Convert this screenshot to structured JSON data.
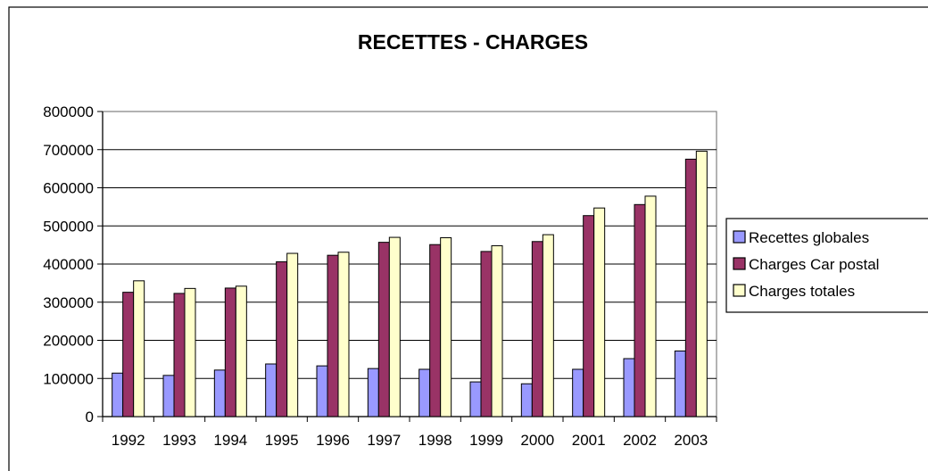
{
  "chart_data": {
    "type": "bar",
    "title": "RECETTES - CHARGES",
    "xlabel": "",
    "ylabel": "",
    "categories": [
      "1992",
      "1993",
      "1994",
      "1995",
      "1996",
      "1997",
      "1998",
      "1999",
      "2000",
      "2001",
      "2002",
      "2003"
    ],
    "series": [
      {
        "name": "Recettes globales",
        "color": "#9999ff",
        "values": [
          114000,
          108000,
          122000,
          138000,
          133000,
          126000,
          124000,
          91000,
          86000,
          124000,
          152000,
          172000
        ]
      },
      {
        "name": "Charges Car postal",
        "color": "#993366",
        "values": [
          326000,
          323000,
          337000,
          406000,
          423000,
          457000,
          451000,
          433000,
          459000,
          527000,
          556000,
          675000
        ]
      },
      {
        "name": "Charges totales",
        "color": "#ffffcc",
        "values": [
          356000,
          336000,
          342000,
          428000,
          431000,
          470000,
          469000,
          448000,
          477000,
          547000,
          578000,
          696000
        ]
      }
    ],
    "yticks": [
      "0",
      "100000",
      "200000",
      "300000",
      "400000",
      "500000",
      "600000",
      "700000",
      "800000"
    ],
    "ylim": [
      0,
      800000
    ],
    "grid": true,
    "legend_position": "right"
  }
}
